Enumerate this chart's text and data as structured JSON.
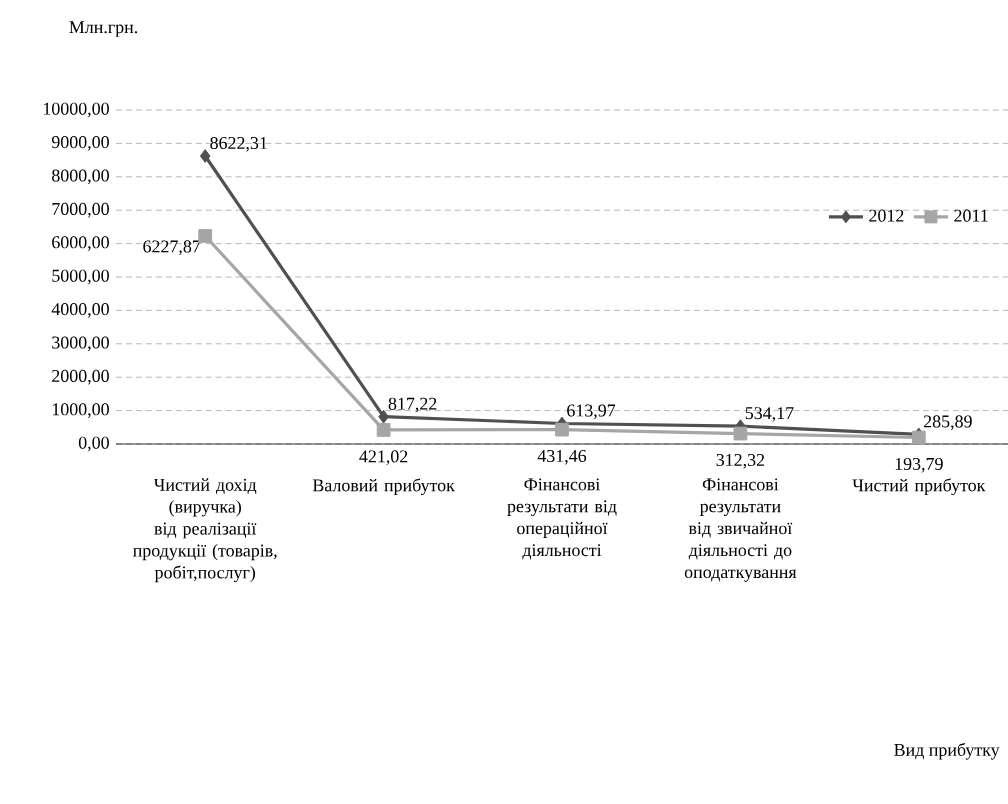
{
  "chart_data": {
    "type": "line",
    "ylabel": "Млн.грн.",
    "annotations": [
      "Вид прибутку"
    ],
    "categories": [
      "Чистий дохід (виручка) від реалізації продукції (товарів, робіт,послуг)",
      "Валовий прибуток",
      "Фінансові результати від операційної діяльності",
      "Фінансові результати від звичайної діяльності до оподаткування",
      "Чистий прибуток"
    ],
    "series": [
      {
        "name": "2012",
        "color": "#505050",
        "marker": "diamond",
        "values": [
          8622.31,
          817.22,
          613.97,
          534.17,
          285.89
        ],
        "value_labels": [
          "8622,31",
          "817,22",
          "613,97",
          "534,17",
          "285,89"
        ]
      },
      {
        "name": "2011",
        "color": "#a6a6a6",
        "marker": "square",
        "values": [
          6227.87,
          421.02,
          431.46,
          312.32,
          193.79
        ],
        "value_labels": [
          "6227,87",
          "421,02",
          "431,46",
          "312,32",
          "193,79"
        ]
      }
    ],
    "ylim": [
      0,
      10000
    ],
    "yticks": [
      {
        "value": 0,
        "label": "0,00"
      },
      {
        "value": 1000,
        "label": "1000,00"
      },
      {
        "value": 2000,
        "label": "2000,00"
      },
      {
        "value": 3000,
        "label": "3000,00"
      },
      {
        "value": 4000,
        "label": "4000,00"
      },
      {
        "value": 5000,
        "label": "5000,00"
      },
      {
        "value": 6000,
        "label": "6000,00"
      },
      {
        "value": 7000,
        "label": "7000,00"
      },
      {
        "value": 8000,
        "label": "8000,00"
      },
      {
        "value": 9000,
        "label": "9000,00"
      },
      {
        "value": 10000,
        "label": "10000,00"
      }
    ],
    "grid": "y",
    "legend": "right"
  }
}
